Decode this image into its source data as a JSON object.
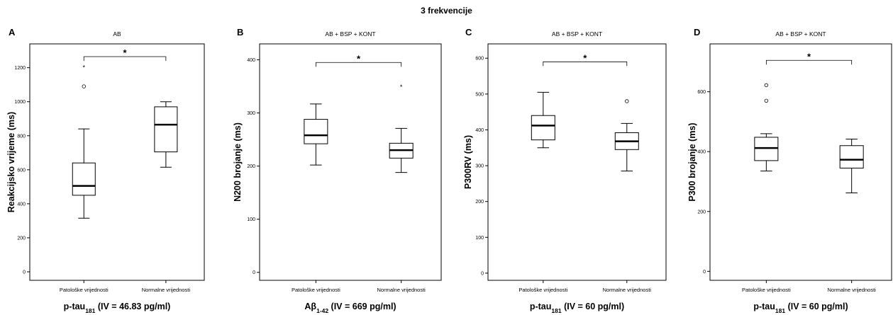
{
  "title": "3 frekvencije",
  "chart_data": [
    {
      "type": "box",
      "panel_label": "A",
      "subtitle": "AB",
      "ylabel": "Reakcijsko vrijeme (ms)",
      "xlabel_main": "p-tau",
      "xlabel_sub": "181",
      "xlabel_tail": " (IV = 46.83 pg/ml)",
      "ylim": [
        -50,
        1340
      ],
      "yticks": [
        "0",
        "200",
        "400",
        "600",
        "800",
        "1000",
        "1200"
      ],
      "ytick_values": [
        0,
        200,
        400,
        600,
        800,
        1000,
        1200
      ],
      "categories": [
        "Patološke vrijednosti",
        "Normalne vrijednosti"
      ],
      "boxes": [
        {
          "min": 315,
          "q1": 450,
          "median": 505,
          "q3": 640,
          "max": 840,
          "outliers": [
            {
              "value": 1090,
              "marker": "o"
            },
            {
              "value": 1205,
              "marker": "*"
            }
          ]
        },
        {
          "min": 615,
          "q1": 705,
          "median": 865,
          "q3": 970,
          "max": 1000,
          "outliers": []
        }
      ],
      "significance": {
        "from": 0,
        "to": 1,
        "label": "*",
        "level": 1265
      }
    },
    {
      "type": "box",
      "panel_label": "B",
      "subtitle": "AB + BSP + KONT",
      "ylabel": "N200 brojanje (ms)",
      "xlabel_main": "Aβ",
      "xlabel_sub": "1-42",
      "xlabel_tail": " (IV = 669 pg/ml)",
      "ylim": [
        -15,
        430
      ],
      "yticks": [
        "0",
        "100",
        "200",
        "300",
        "400"
      ],
      "ytick_values": [
        0,
        100,
        200,
        300,
        400
      ],
      "categories": [
        "Patološke vrijednosti",
        "Normalne vrijednosti"
      ],
      "boxes": [
        {
          "min": 202,
          "q1": 242,
          "median": 258,
          "q3": 288,
          "max": 317,
          "outliers": []
        },
        {
          "min": 188,
          "q1": 215,
          "median": 230,
          "q3": 243,
          "max": 271,
          "outliers": [
            {
              "value": 350,
              "marker": "*"
            }
          ]
        }
      ],
      "significance": {
        "from": 0,
        "to": 1,
        "label": "*",
        "level": 395
      }
    },
    {
      "type": "box",
      "panel_label": "C",
      "subtitle": "AB + BSP + KONT",
      "ylabel": "P300RV (ms)",
      "xlabel_main": "p-tau",
      "xlabel_sub": "181",
      "xlabel_tail": " (IV = 60 pg/ml)",
      "ylim": [
        -20,
        640
      ],
      "yticks": [
        "0",
        "100",
        "200",
        "300",
        "400",
        "500",
        "600"
      ],
      "ytick_values": [
        0,
        100,
        200,
        300,
        400,
        500,
        600
      ],
      "categories": [
        "Patološke vrijednosti",
        "Normalne vrijednosti"
      ],
      "boxes": [
        {
          "min": 350,
          "q1": 372,
          "median": 412,
          "q3": 440,
          "max": 505,
          "outliers": []
        },
        {
          "min": 285,
          "q1": 345,
          "median": 368,
          "q3": 392,
          "max": 418,
          "outliers": [
            {
              "value": 480,
              "marker": "o"
            }
          ]
        }
      ],
      "significance": {
        "from": 0,
        "to": 1,
        "label": "*",
        "level": 590
      }
    },
    {
      "type": "box",
      "panel_label": "D",
      "subtitle": "AB + BSP + KONT",
      "ylabel": "P300 brojanje (ms)",
      "xlabel_main": "p-tau",
      "xlabel_sub": "181",
      "xlabel_tail": " (IV = 60 pg/ml)",
      "ylim": [
        -30,
        760
      ],
      "yticks": [
        "0",
        "200",
        "400",
        "600"
      ],
      "ytick_values": [
        0,
        200,
        400,
        600
      ],
      "categories": [
        "Patološke vrijednosti",
        "Normalne vrijednosti"
      ],
      "boxes": [
        {
          "min": 335,
          "q1": 370,
          "median": 412,
          "q3": 448,
          "max": 460,
          "outliers": [
            {
              "value": 570,
              "marker": "o"
            },
            {
              "value": 622,
              "marker": "o"
            }
          ]
        },
        {
          "min": 262,
          "q1": 345,
          "median": 373,
          "q3": 420,
          "max": 442,
          "outliers": []
        }
      ],
      "significance": {
        "from": 0,
        "to": 1,
        "label": "*",
        "level": 705
      }
    }
  ]
}
